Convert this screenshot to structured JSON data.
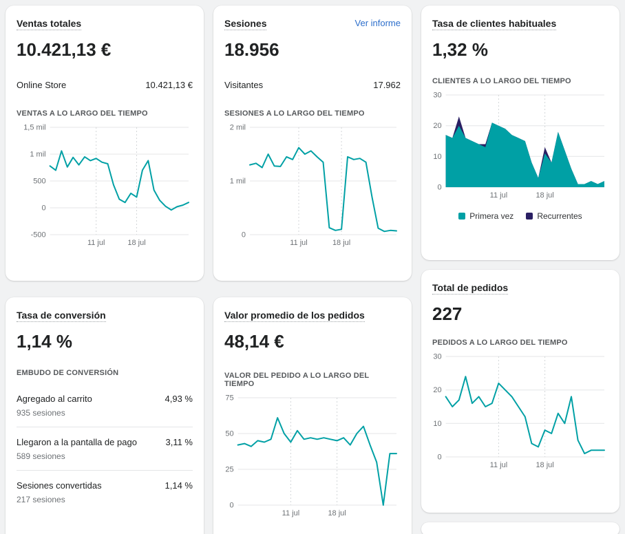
{
  "colors": {
    "accent_teal": "#00a0a5",
    "accent_navy": "#2a1f63",
    "link_blue": "#2c6ecb"
  },
  "cards": {
    "ventas": {
      "title": "Ventas totales",
      "value": "10.421,13 €",
      "breakdown_label": "Online Store",
      "breakdown_value": "10.421,13 €",
      "chart_heading": "VENTAS A LO LARGO DEL TIEMPO"
    },
    "sesiones": {
      "title": "Sesiones",
      "link": "Ver informe",
      "value": "18.956",
      "breakdown_label": "Visitantes",
      "breakdown_value": "17.962",
      "chart_heading": "SESIONES A LO LARGO DEL TIEMPO"
    },
    "clientes": {
      "title": "Tasa de clientes habituales",
      "value": "1,32 %",
      "chart_heading": "CLIENTES A LO LARGO DEL TIEMPO"
    },
    "conversion": {
      "title": "Tasa de conversión",
      "value": "1,14 %",
      "section_heading": "EMBUDO DE CONVERSIÓN",
      "rows": [
        {
          "label": "Agregado al carrito",
          "sessions": "935 sesiones",
          "pct": "4,93 %"
        },
        {
          "label": "Llegaron a la pantalla de pago",
          "sessions": "589 sesiones",
          "pct": "3,11 %"
        },
        {
          "label": "Sesiones convertidas",
          "sessions": "217 sesiones",
          "pct": "1,14 %"
        }
      ]
    },
    "valor": {
      "title": "Valor promedio de los pedidos",
      "value": "48,14 €",
      "chart_heading": "VALOR DEL PEDIDO A LO LARGO DEL TIEMPO"
    },
    "pedidos": {
      "title": "Total de pedidos",
      "value": "227",
      "chart_heading": "PEDIDOS A LO LARGO DEL TIEMPO"
    }
  },
  "chart_data": [
    {
      "id": "ventas",
      "type": "line",
      "title": "VENTAS A LO LARGO DEL TIEMPO",
      "color": "#00a0a5",
      "height": 182,
      "ylim": [
        -500,
        1500
      ],
      "yticks": [
        {
          "v": -500,
          "label": "-500"
        },
        {
          "v": 0,
          "label": "0"
        },
        {
          "v": 500,
          "label": "500"
        },
        {
          "v": 1000,
          "label": "1 mil"
        },
        {
          "v": 1500,
          "label": "1,5 mil"
        }
      ],
      "xticks": [
        {
          "i": 8,
          "label": "11 jul"
        },
        {
          "i": 15,
          "label": "18 jul"
        }
      ],
      "values": [
        780,
        700,
        1060,
        760,
        940,
        800,
        950,
        880,
        920,
        850,
        820,
        430,
        160,
        100,
        270,
        200,
        700,
        880,
        330,
        140,
        30,
        -40,
        20,
        50,
        100
      ]
    },
    {
      "id": "sesiones",
      "type": "line",
      "title": "SESIONES A LO LARGO DEL TIEMPO",
      "color": "#00a0a5",
      "height": 182,
      "ylim": [
        0,
        2000
      ],
      "yticks": [
        {
          "v": 0,
          "label": "0"
        },
        {
          "v": 1000,
          "label": "1 mil"
        },
        {
          "v": 2000,
          "label": "2 mil"
        }
      ],
      "xticks": [
        {
          "i": 8,
          "label": "11 jul"
        },
        {
          "i": 15,
          "label": "18 jul"
        }
      ],
      "values": [
        1300,
        1330,
        1250,
        1500,
        1280,
        1270,
        1450,
        1400,
        1620,
        1500,
        1560,
        1450,
        1350,
        130,
        80,
        100,
        1450,
        1400,
        1420,
        1350,
        700,
        120,
        60,
        80,
        70
      ]
    },
    {
      "id": "clientes",
      "type": "stacked-area",
      "title": "CLIENTES A LO LARGO DEL TIEMPO",
      "height": 160,
      "legend": true,
      "ylim": [
        0,
        30
      ],
      "yticks": [
        {
          "v": 0,
          "label": "0"
        },
        {
          "v": 10,
          "label": "10"
        },
        {
          "v": 20,
          "label": "20"
        },
        {
          "v": 30,
          "label": "30"
        }
      ],
      "xticks": [
        {
          "i": 8,
          "label": "11 jul"
        },
        {
          "i": 15,
          "label": "18 jul"
        }
      ],
      "series": [
        {
          "name": "Primera vez",
          "color": "#00a0a5",
          "values": [
            17,
            16,
            20,
            16,
            15,
            14,
            13,
            21,
            20,
            19,
            17,
            16,
            15,
            8,
            3,
            11,
            8,
            18,
            12,
            6,
            1,
            1,
            2,
            1,
            2
          ]
        },
        {
          "name": "Recurrentes",
          "color": "#2a1f63",
          "values": [
            0,
            0,
            3,
            0,
            0,
            0,
            1,
            0,
            0,
            0,
            0,
            0,
            0,
            0,
            0,
            2,
            0,
            0,
            0,
            0,
            0,
            0,
            0,
            0,
            0
          ]
        }
      ]
    },
    {
      "id": "valor",
      "type": "line",
      "title": "VALOR DEL PEDIDO A LO LARGO DEL TIEMPO",
      "color": "#00a0a5",
      "height": 182,
      "ylim": [
        0,
        75
      ],
      "yticks": [
        {
          "v": 0,
          "label": "0"
        },
        {
          "v": 25,
          "label": "25"
        },
        {
          "v": 50,
          "label": "50"
        },
        {
          "v": 75,
          "label": "75"
        }
      ],
      "xticks": [
        {
          "i": 8,
          "label": "11 jul"
        },
        {
          "i": 15,
          "label": "18 jul"
        }
      ],
      "values": [
        42,
        43,
        41,
        45,
        44,
        46,
        61,
        50,
        44,
        52,
        46,
        47,
        46,
        47,
        46,
        45,
        47,
        42,
        50,
        55,
        42,
        30,
        0,
        36,
        36
      ]
    },
    {
      "id": "pedidos",
      "type": "line",
      "title": "PEDIDOS A LO LARGO DEL TIEMPO",
      "color": "#00a0a5",
      "height": 172,
      "ylim": [
        0,
        30
      ],
      "yticks": [
        {
          "v": 0,
          "label": "0"
        },
        {
          "v": 10,
          "label": "10"
        },
        {
          "v": 20,
          "label": "20"
        },
        {
          "v": 30,
          "label": "30"
        }
      ],
      "xticks": [
        {
          "i": 8,
          "label": "11 jul"
        },
        {
          "i": 15,
          "label": "18 jul"
        }
      ],
      "values": [
        18,
        15,
        17,
        24,
        16,
        18,
        15,
        16,
        22,
        20,
        18,
        15,
        12,
        4,
        3,
        8,
        7,
        13,
        10,
        18,
        5,
        1,
        2,
        2,
        2
      ]
    }
  ]
}
